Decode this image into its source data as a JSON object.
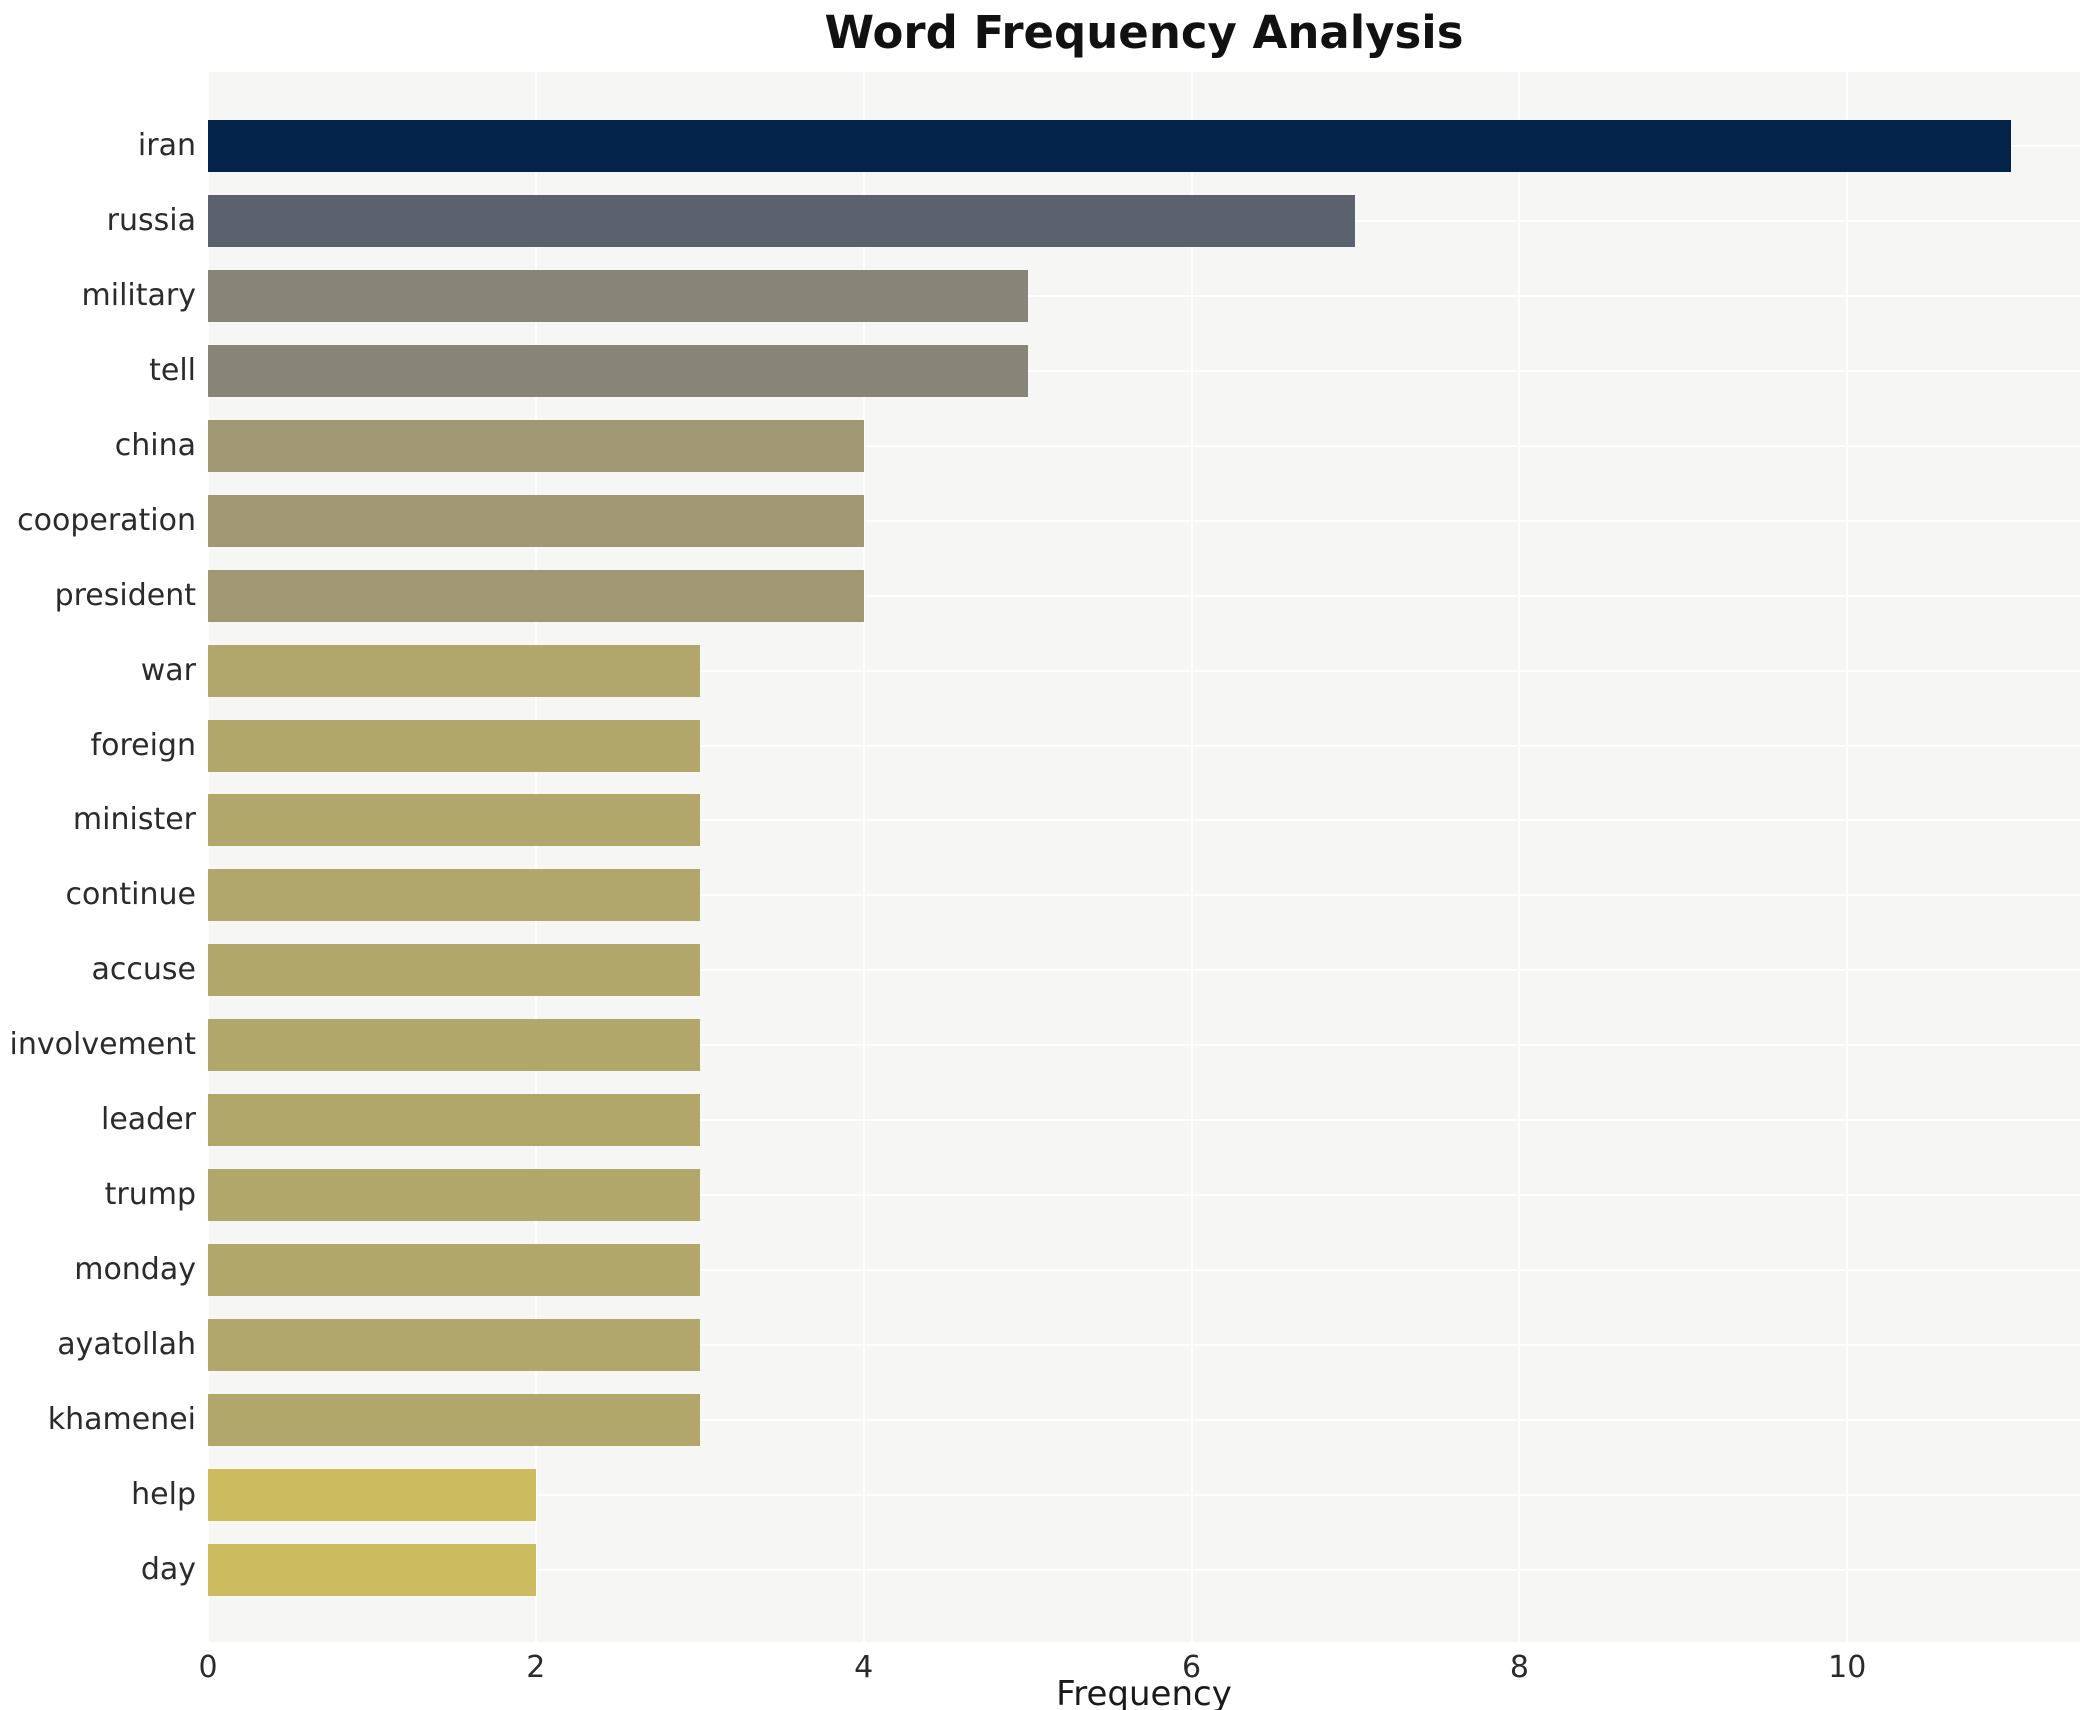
{
  "title": "Word Frequency Analysis",
  "chart_data": {
    "type": "bar",
    "orientation": "horizontal",
    "title": "Word Frequency Analysis",
    "xlabel": "Frequency",
    "ylabel": "",
    "categories": [
      "iran",
      "russia",
      "military",
      "tell",
      "china",
      "cooperation",
      "president",
      "war",
      "foreign",
      "minister",
      "continue",
      "accuse",
      "involvement",
      "leader",
      "trump",
      "monday",
      "ayatollah",
      "khamenei",
      "help",
      "day"
    ],
    "values": [
      11,
      7,
      5,
      5,
      4,
      4,
      4,
      3,
      3,
      3,
      3,
      3,
      3,
      3,
      3,
      3,
      3,
      3,
      2,
      2
    ],
    "bar_colors": [
      "#03234b",
      "#5c6170",
      "#878578",
      "#878578",
      "#a09873",
      "#a09873",
      "#a09873",
      "#b2a76b",
      "#b2a76b",
      "#b2a76b",
      "#b2a76b",
      "#b2a76b",
      "#b2a76b",
      "#b2a76b",
      "#b2a76b",
      "#b2a76b",
      "#b2a76b",
      "#b2a76b",
      "#cdbb60",
      "#cdbb60"
    ],
    "xlim": [
      0,
      11.42
    ],
    "xticks": [
      0,
      2,
      4,
      6,
      8,
      10
    ],
    "grid": true,
    "legend_position": "none",
    "plot_bg": "#f6f6f4",
    "grid_color": "#ffffff"
  }
}
